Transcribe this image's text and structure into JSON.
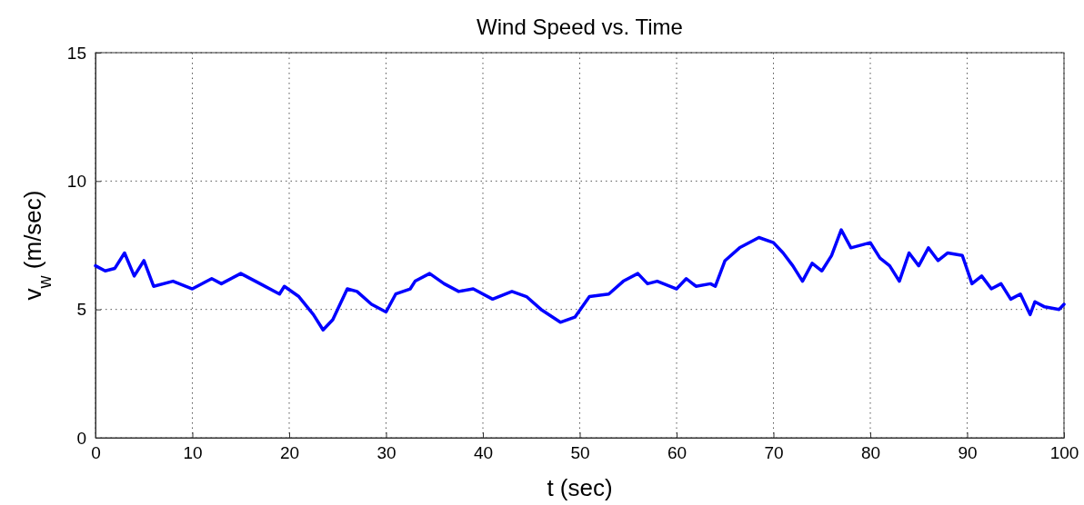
{
  "chart_data": {
    "type": "line",
    "title": "Wind Speed vs. Time",
    "xlabel": "t (sec)",
    "ylabel": "v$_{w}$ (m/sec)",
    "x": [
      0,
      1,
      2,
      3,
      4,
      5,
      6,
      8,
      10,
      12,
      13,
      15,
      17,
      19,
      19.5,
      21,
      22.5,
      23.5,
      24.5,
      26,
      27,
      28.5,
      30,
      31,
      32.5,
      33,
      34.5,
      36,
      37.5,
      39,
      41,
      43,
      44.5,
      46,
      48,
      49.5,
      51,
      53,
      54.5,
      56,
      57,
      58,
      60,
      61,
      62,
      63.5,
      64,
      65,
      66.5,
      68.5,
      70,
      71,
      72,
      73,
      74,
      75,
      76,
      77,
      78,
      80,
      81,
      82,
      83,
      84,
      85,
      86,
      87,
      88,
      89.5,
      90.5,
      91.5,
      92.5,
      93.5,
      94.5,
      95.5,
      96.5,
      97,
      98,
      99.5,
      100
    ],
    "series": [
      {
        "color": "#0000ff",
        "values": [
          6.7,
          6.5,
          6.6,
          7.2,
          6.3,
          6.9,
          5.9,
          6.1,
          5.8,
          6.2,
          6.0,
          6.4,
          6.0,
          5.6,
          5.9,
          5.5,
          4.8,
          4.2,
          4.6,
          5.8,
          5.7,
          5.2,
          4.9,
          5.6,
          5.8,
          6.1,
          6.4,
          6.0,
          5.7,
          5.8,
          5.4,
          5.7,
          5.5,
          5.0,
          4.5,
          4.7,
          5.5,
          5.6,
          6.1,
          6.4,
          6.0,
          6.1,
          5.8,
          6.2,
          5.9,
          6.0,
          5.9,
          6.9,
          7.4,
          7.8,
          7.6,
          7.2,
          6.7,
          6.1,
          6.8,
          6.5,
          7.1,
          8.1,
          7.4,
          7.6,
          7.0,
          6.7,
          6.1,
          7.2,
          6.7,
          7.4,
          6.9,
          7.2,
          7.1,
          6.0,
          6.3,
          5.8,
          6.0,
          5.4,
          5.6,
          4.8,
          5.3,
          5.1,
          5.0,
          5.2
        ]
      }
    ],
    "xlim": [
      0,
      100
    ],
    "xticks": [
      0,
      10,
      20,
      30,
      40,
      50,
      60,
      70,
      80,
      90,
      100
    ],
    "ylim": [
      0,
      15
    ],
    "yticks": [
      0,
      5,
      10,
      15
    ],
    "grid": true,
    "line_style": "solid",
    "marker": "none"
  }
}
